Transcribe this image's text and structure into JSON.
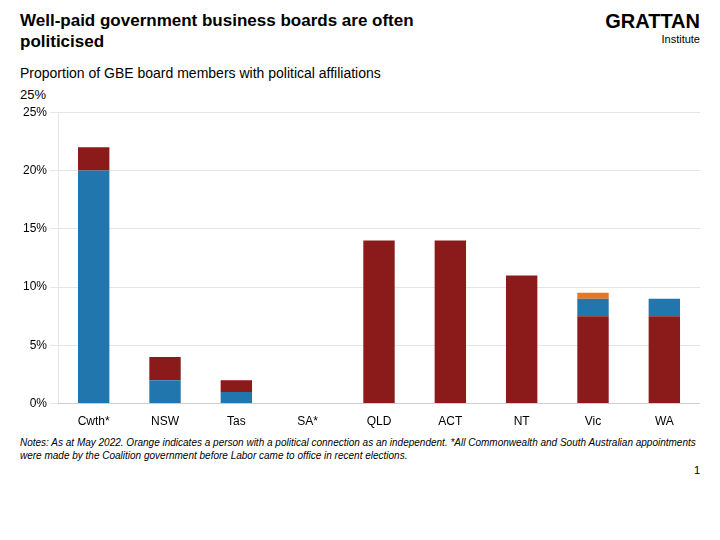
{
  "chart_data": {
    "type": "bar",
    "stacked": true,
    "title": "Well-paid government business boards are often politicised",
    "subtitle": "Proportion of GBE board members with political affiliations",
    "categories": [
      "Cwth*",
      "NSW",
      "Tas",
      "SA*",
      "QLD",
      "ACT",
      "NT",
      "Vic",
      "WA"
    ],
    "series": [
      {
        "values": [
          20.0,
          2.0,
          1.0,
          null,
          14.0,
          14.0,
          11.0,
          7.5,
          7.5
        ],
        "colors": [
          "#2176ae",
          "#2176ae",
          "#2176ae",
          null,
          "#8b1a1a",
          "#8b1a1a",
          "#8b1a1a",
          "#8b1a1a",
          "#8b1a1a"
        ]
      },
      {
        "values": [
          2.0,
          2.0,
          1.0,
          null,
          null,
          null,
          null,
          1.5,
          1.5
        ],
        "colors": [
          "#8b1a1a",
          "#8b1a1a",
          "#8b1a1a",
          null,
          null,
          null,
          null,
          "#2176ae",
          "#2176ae"
        ]
      },
      {
        "values": [
          null,
          null,
          null,
          null,
          null,
          null,
          null,
          0.5,
          null
        ],
        "colors": [
          null,
          null,
          null,
          null,
          null,
          null,
          null,
          "#e87722",
          null
        ]
      }
    ],
    "ylim": [
      0,
      25
    ],
    "yticks": [
      {
        "value": 0,
        "label": "0%"
      },
      {
        "value": 5,
        "label": "5%"
      },
      {
        "value": 10,
        "label": "10%"
      },
      {
        "value": 15,
        "label": "15%"
      },
      {
        "value": 20,
        "label": "20%"
      },
      {
        "value": 25,
        "label": "25%"
      }
    ],
    "grid": true,
    "annotations": [
      "GRATTAN",
      "Institute",
      "25%",
      "1"
    ],
    "notes": "Notes: As at May 2022. Orange indicates a person with a political connection as an independent. *All Commonwealth and South Australian appointments were made by the Coalition government before Labor came to office in recent elections."
  }
}
